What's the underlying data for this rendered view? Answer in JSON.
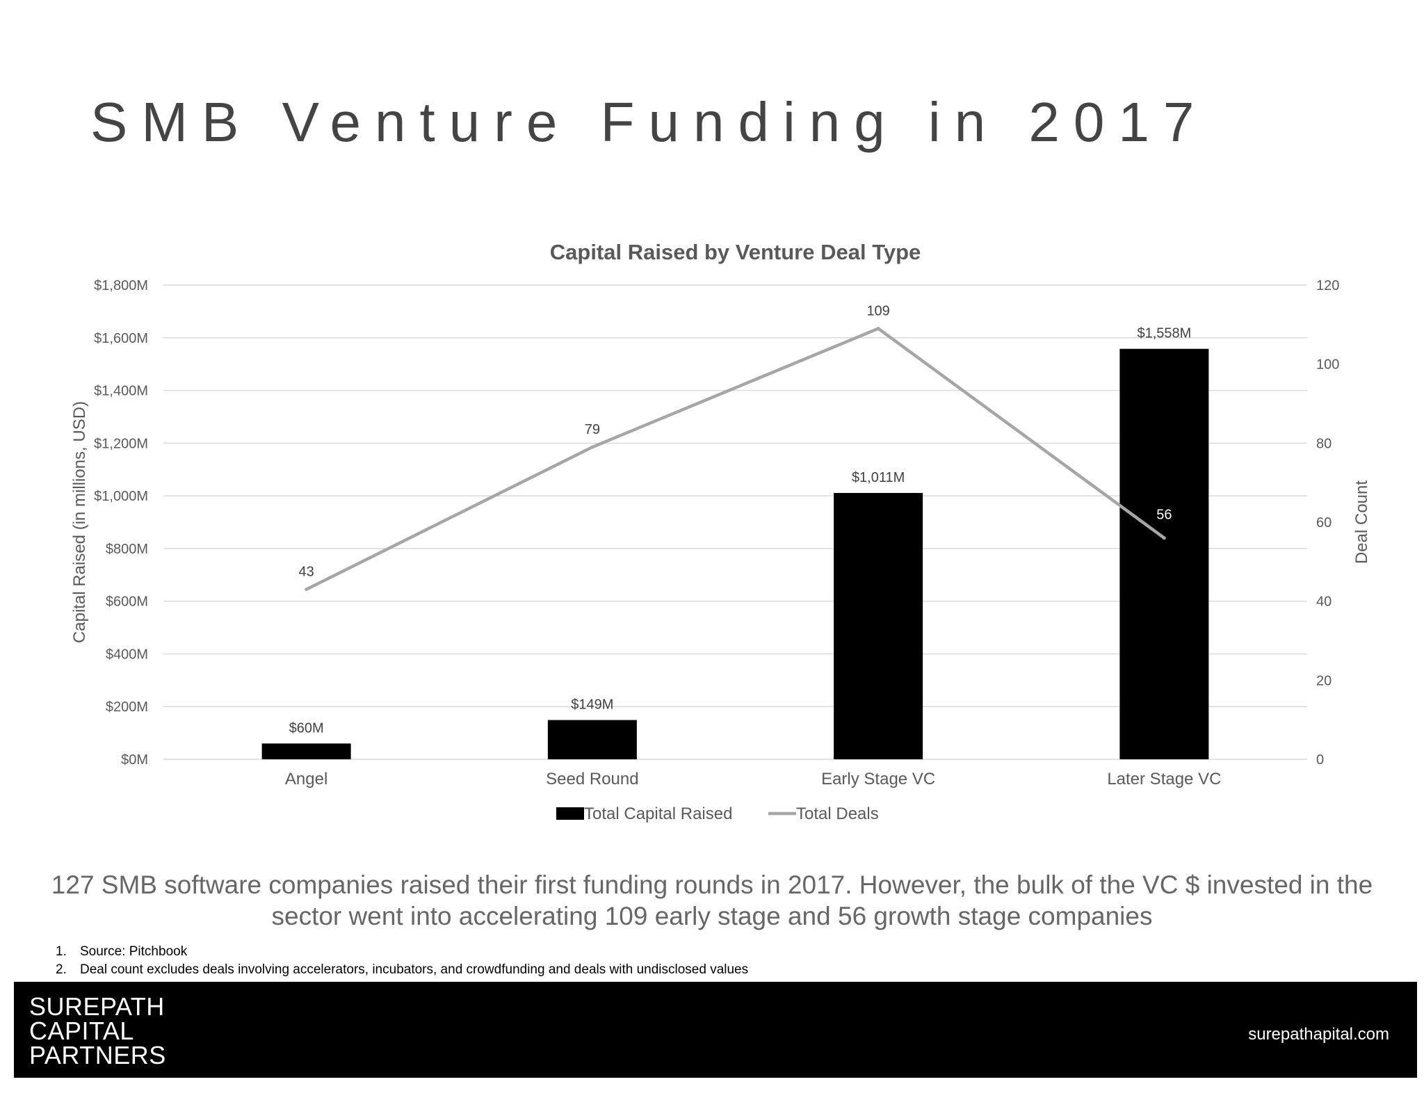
{
  "slide": {
    "title": "SMB Venture Funding in 2017",
    "summary": "127 SMB software companies raised their first funding rounds in 2017. However, the bulk of the VC $ invested in the sector went into accelerating 109 early stage and 56 growth stage companies",
    "footnotes": [
      {
        "num": "1.",
        "text": "Source: Pitchbook"
      },
      {
        "num": "2.",
        "text": "Deal count excludes deals involving accelerators, incubators, and crowdfunding and deals with undisclosed values"
      }
    ]
  },
  "footer": {
    "logo_lines": [
      "SUREPATH",
      "CAPITAL",
      "PARTNERS"
    ],
    "website": "surepathapital.com"
  },
  "colors": {
    "bar": "#000000",
    "line": "#A6A6A6",
    "grid": "#D9D9D9",
    "axis_text": "#595959",
    "footer_bg": "#000000"
  },
  "chart_data": {
    "type": "bar",
    "title": "Capital Raised by Venture Deal Type",
    "categories": [
      "Angel",
      "Seed Round",
      "Early Stage VC",
      "Later Stage VC"
    ],
    "series": [
      {
        "name": "Total Capital Raised",
        "type": "bar",
        "axis": "left",
        "values": [
          60,
          149,
          1011,
          1558
        ],
        "labels": [
          "$60M",
          "$149M",
          "$1,011M",
          "$1,558M"
        ]
      },
      {
        "name": "Total Deals",
        "type": "line",
        "axis": "right",
        "values": [
          43,
          79,
          109,
          56
        ],
        "labels": [
          "43",
          "79",
          "109",
          "56"
        ]
      }
    ],
    "ylabel": "Capital Raised (in millions, USD)",
    "ylim": [
      0,
      1800
    ],
    "yticks": [
      "$0M",
      "$200M",
      "$400M",
      "$600M",
      "$800M",
      "$1,000M",
      "$1,200M",
      "$1,400M",
      "$1,600M",
      "$1,800M"
    ],
    "y2label": "Deal Count",
    "y2lim": [
      0,
      120
    ],
    "y2ticks": [
      "0",
      "20",
      "40",
      "60",
      "80",
      "100",
      "120"
    ],
    "grid": true,
    "legend_position": "bottom"
  }
}
